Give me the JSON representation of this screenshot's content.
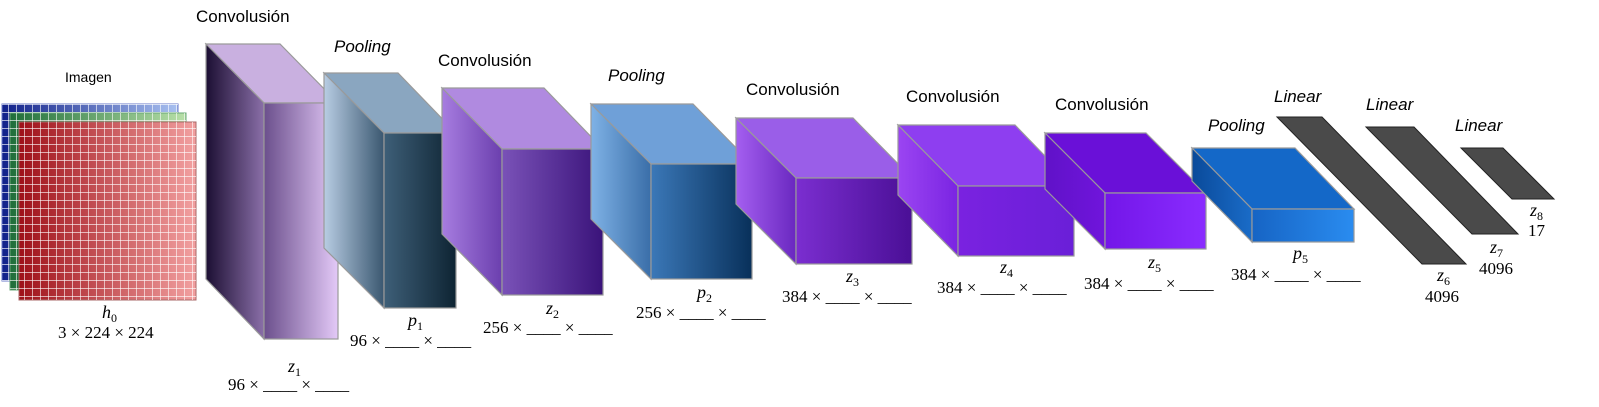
{
  "input": {
    "title": "Imagen",
    "var": "h",
    "sub": "0",
    "dims": "3 × 224 × 224",
    "colors": {
      "red": "#c0282d",
      "green": "#2f8a4a",
      "blue": "#1f2fa8",
      "grid": "#ffffff"
    }
  },
  "layers": [
    {
      "label": "Convolusión",
      "italic": false,
      "var": "z",
      "sub": "1",
      "dims": "96 × ____ × ____"
    },
    {
      "label": "Pooling",
      "italic": true,
      "var": "p",
      "sub": "1",
      "dims": "96 × ____ × ____"
    },
    {
      "label": "Convolusión",
      "italic": false,
      "var": "z",
      "sub": "2",
      "dims": "256 × ____ × ____"
    },
    {
      "label": "Pooling",
      "italic": true,
      "var": "p",
      "sub": "2",
      "dims": "256 × ____ × ____"
    },
    {
      "label": "Convolusión",
      "italic": false,
      "var": "z",
      "sub": "3",
      "dims": "384 × ____ × ____"
    },
    {
      "label": "Convolusión",
      "italic": false,
      "var": "z",
      "sub": "4",
      "dims": "384 × ____ × ____"
    },
    {
      "label": "Convolusión",
      "italic": false,
      "var": "z",
      "sub": "5",
      "dims": "384 × ____ × ____"
    },
    {
      "label": "Pooling",
      "italic": true,
      "var": "p",
      "sub": "5",
      "dims": "384 × ____ × ____"
    }
  ],
  "linear": [
    {
      "label": "Linear",
      "var": "z",
      "sub": "6",
      "dims": "4096"
    },
    {
      "label": "Linear",
      "var": "z",
      "sub": "7",
      "dims": "4096"
    },
    {
      "label": "Linear",
      "var": "z",
      "sub": "8",
      "dims": "17"
    }
  ],
  "colors": {
    "conv1": [
      "#1c0f33",
      "#e3c9f7"
    ],
    "pool1": [
      "#b8cde3",
      "#0e2433"
    ],
    "conv2": [
      "#a77de0",
      "#3a137a"
    ],
    "pool2": [
      "#7fb2e6",
      "#08305a"
    ],
    "conv3": [
      "#a45ff0",
      "#4a0f96"
    ],
    "conv4": [
      "#9b45f2",
      "#6a1fd8"
    ],
    "conv5": [
      "#7015dc",
      "#8a2cff"
    ],
    "pool5": [
      "#0a4a9a",
      "#2a8cf0"
    ],
    "linear": "#4a4a4a"
  }
}
